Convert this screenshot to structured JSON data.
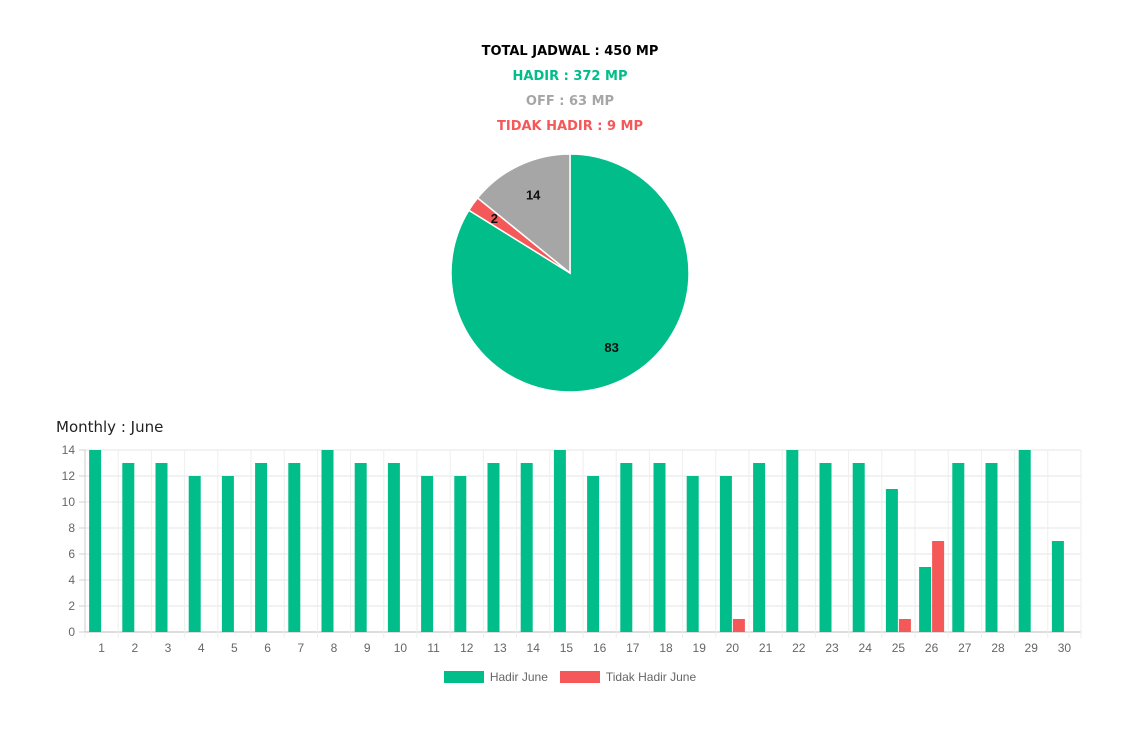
{
  "summary": {
    "total": "TOTAL JADWAL : 450 MP",
    "hadir": "HADIR : 372 MP",
    "off": "OFF : 63 MP",
    "tidak_hadir": "TIDAK HADIR : 9 MP"
  },
  "monthly_title": "Monthly : June",
  "colors": {
    "hadir": "#00bd8a",
    "off": "#a6a6a6",
    "tidak_hadir": "#f55858"
  },
  "chart_data": [
    {
      "type": "pie",
      "slices": [
        {
          "label": "HADIR",
          "value": 83,
          "color": "#00bd8a"
        },
        {
          "label": "TIDAK HADIR",
          "value": 2,
          "color": "#f55858"
        },
        {
          "label": "OFF",
          "value": 14,
          "color": "#a6a6a6"
        }
      ]
    },
    {
      "type": "bar",
      "categories": [
        "1",
        "2",
        "3",
        "4",
        "5",
        "6",
        "7",
        "8",
        "9",
        "10",
        "11",
        "12",
        "13",
        "14",
        "15",
        "16",
        "17",
        "18",
        "19",
        "20",
        "21",
        "22",
        "23",
        "24",
        "25",
        "26",
        "27",
        "28",
        "29",
        "30"
      ],
      "series": [
        {
          "name": "Hadir June",
          "color": "#00bd8a",
          "values": [
            14,
            13,
            13,
            12,
            12,
            13,
            13,
            14,
            13,
            13,
            12,
            12,
            13,
            13,
            14,
            12,
            13,
            13,
            12,
            12,
            13,
            14,
            13,
            13,
            11,
            5,
            13,
            13,
            14,
            7
          ]
        },
        {
          "name": "Tidak Hadir June",
          "color": "#f55858",
          "values": [
            0,
            0,
            0,
            0,
            0,
            0,
            0,
            0,
            0,
            0,
            0,
            0,
            0,
            0,
            0,
            0,
            0,
            0,
            0,
            1,
            0,
            0,
            0,
            0,
            1,
            7,
            0,
            0,
            0,
            0
          ]
        }
      ],
      "ylim": [
        0,
        14
      ],
      "yticks": [
        0,
        2,
        4,
        6,
        8,
        10,
        12,
        14
      ],
      "grid": true,
      "legend": "bottom"
    }
  ]
}
